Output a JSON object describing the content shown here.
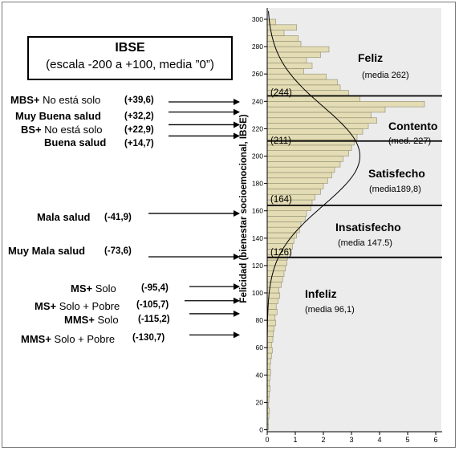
{
  "title_box": {
    "title": "IBSE",
    "subtitle": "(escala -200 a +100, media ”0”)"
  },
  "labels": [
    {
      "prefix": "MBS+",
      "text": " No está solo",
      "value": "(+39,6)"
    },
    {
      "prefix": "Muy Buena salud",
      "text": "",
      "value": "(+32,2)"
    },
    {
      "prefix": "BS+",
      "text": " No está solo",
      "value": "(+22,9)"
    },
    {
      "prefix": "Buena salud",
      "text": "",
      "value": "(+14,7)"
    },
    {
      "prefix": "Mala salud",
      "text": "",
      "value": "(-41,9)"
    },
    {
      "prefix": "Muy Mala salud",
      "text": "",
      "value": "(-73,6)"
    },
    {
      "prefix": "MS+",
      "text": " Solo",
      "value": "(-95,4)"
    },
    {
      "prefix": "MS+",
      "text": " Solo + Pobre",
      "value": "(-105,7)"
    },
    {
      "prefix": "MMS+",
      "text": " Solo",
      "value": "(-115,2)"
    },
    {
      "prefix": "MMS+",
      "text": " Solo + Pobre",
      "value": "(-130,7)"
    }
  ],
  "chart_data": {
    "type": "bar",
    "orientation": "horizontal",
    "ylabel": "Felicidad  (bienestar socioemocional, IBSE)",
    "xlabel": "",
    "ylim": [
      0,
      305
    ],
    "xlim": [
      0,
      6.3
    ],
    "y_ticks": [
      0,
      20,
      40,
      60,
      80,
      100,
      120,
      140,
      160,
      180,
      200,
      220,
      240,
      260,
      280,
      300
    ],
    "x_ticks": [
      0,
      1,
      2,
      3,
      4,
      5,
      6
    ],
    "bin_width": 4,
    "bins": [
      [
        0,
        0.05
      ],
      [
        4,
        0.04
      ],
      [
        8,
        0.06
      ],
      [
        12,
        0.08
      ],
      [
        16,
        0.05
      ],
      [
        20,
        0.06
      ],
      [
        24,
        0.08
      ],
      [
        28,
        0.1
      ],
      [
        32,
        0.08
      ],
      [
        36,
        0.1
      ],
      [
        40,
        0.12
      ],
      [
        44,
        0.1
      ],
      [
        48,
        0.12
      ],
      [
        52,
        0.15
      ],
      [
        56,
        0.18
      ],
      [
        60,
        0.15
      ],
      [
        64,
        0.2
      ],
      [
        68,
        0.22
      ],
      [
        72,
        0.25
      ],
      [
        76,
        0.3
      ],
      [
        80,
        0.28
      ],
      [
        84,
        0.35
      ],
      [
        88,
        0.32
      ],
      [
        92,
        0.38
      ],
      [
        96,
        0.45
      ],
      [
        100,
        0.42
      ],
      [
        104,
        0.5
      ],
      [
        108,
        0.55
      ],
      [
        112,
        0.6
      ],
      [
        116,
        0.65
      ],
      [
        120,
        0.7
      ],
      [
        124,
        0.72
      ],
      [
        128,
        0.85
      ],
      [
        132,
        0.9
      ],
      [
        136,
        0.95
      ],
      [
        140,
        1.05
      ],
      [
        144,
        1.15
      ],
      [
        148,
        1.2
      ],
      [
        152,
        1.35
      ],
      [
        156,
        1.4
      ],
      [
        160,
        1.55
      ],
      [
        164,
        1.6
      ],
      [
        168,
        1.7
      ],
      [
        172,
        1.9
      ],
      [
        176,
        2.0
      ],
      [
        180,
        2.15
      ],
      [
        184,
        2.3
      ],
      [
        188,
        2.4
      ],
      [
        192,
        2.6
      ],
      [
        196,
        2.7
      ],
      [
        200,
        2.9
      ],
      [
        204,
        3.0
      ],
      [
        208,
        3.1
      ],
      [
        212,
        3.2
      ],
      [
        216,
        3.4
      ],
      [
        220,
        3.6
      ],
      [
        224,
        3.9
      ],
      [
        228,
        3.7
      ],
      [
        232,
        4.2
      ],
      [
        236,
        5.6
      ],
      [
        240,
        3.3
      ],
      [
        244,
        2.9
      ],
      [
        248,
        2.6
      ],
      [
        252,
        2.5
      ],
      [
        256,
        2.1
      ],
      [
        260,
        1.3
      ],
      [
        264,
        1.6
      ],
      [
        268,
        1.4
      ],
      [
        272,
        1.9
      ],
      [
        276,
        2.2
      ],
      [
        280,
        1.2
      ],
      [
        284,
        1.1
      ],
      [
        288,
        0.6
      ],
      [
        292,
        1.05
      ],
      [
        296,
        0.3
      ]
    ],
    "normal_curve": {
      "mean": 200,
      "sd": 36,
      "peak": 3.3
    },
    "thresholds": [
      126,
      164,
      211,
      244
    ],
    "threshold_labels": [
      "(126)",
      "(164)",
      "(211)",
      "(244)"
    ],
    "regions": [
      {
        "name": "Feliz",
        "note": "(media 262)"
      },
      {
        "name": "Contento",
        "note": "(med. 227)"
      },
      {
        "name": "Satisfecho",
        "note": "(media189,8)"
      },
      {
        "name": "Insatisfecho",
        "note": "(media 147.5)"
      },
      {
        "name": "Infeliz",
        "note": "(media 96,1)"
      }
    ],
    "markers": [
      239.6,
      232.2,
      222.9,
      214.7,
      158.1,
      126.4,
      104.6,
      94.3,
      84.8,
      69.3
    ],
    "colors": {
      "bar_fill": "#e4dcb4",
      "bar_stroke": "#8c8c70",
      "plot_bg": "#ececec",
      "line": "#000000"
    }
  }
}
